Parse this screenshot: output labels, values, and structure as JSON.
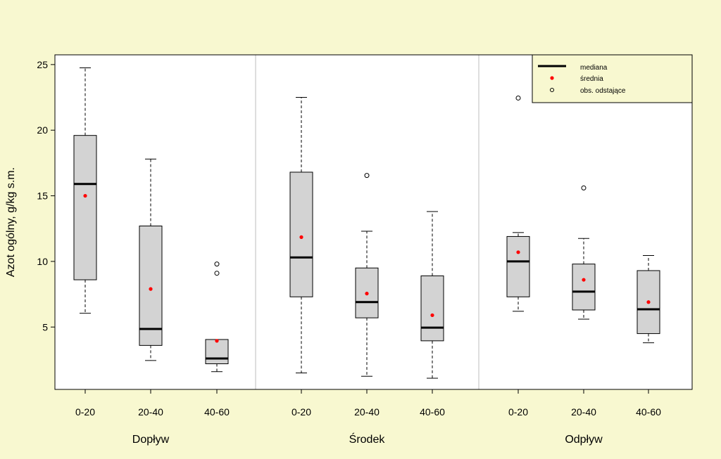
{
  "chart_data": {
    "type": "box",
    "ylabel": "Azot ogólny, g/kg s.m.",
    "ylim": [
      0,
      25.8
    ],
    "y_ticks": [
      5,
      10,
      15,
      20,
      25
    ],
    "groups": [
      {
        "name": "Dopływ",
        "boxes": [
          {
            "label": "0-20",
            "min": 6.05,
            "q1": 8.6,
            "median": 15.9,
            "q3": 19.6,
            "max": 24.75,
            "mean": 15.0,
            "outliers": []
          },
          {
            "label": "20-40",
            "min": 2.45,
            "q1": 3.6,
            "median": 4.85,
            "q3": 12.7,
            "max": 17.8,
            "mean": 7.9,
            "outliers": []
          },
          {
            "label": "40-60",
            "min": 1.6,
            "q1": 2.2,
            "median": 2.6,
            "q3": 4.05,
            "max": 4.05,
            "mean": 3.95,
            "outliers": [
              9.1,
              9.8
            ]
          }
        ]
      },
      {
        "name": "Środek",
        "boxes": [
          {
            "label": "0-20",
            "min": 1.5,
            "q1": 7.3,
            "median": 10.3,
            "q3": 16.8,
            "max": 22.5,
            "mean": 11.85,
            "outliers": []
          },
          {
            "label": "20-40",
            "min": 1.25,
            "q1": 5.7,
            "median": 6.9,
            "q3": 9.5,
            "max": 12.3,
            "mean": 7.55,
            "outliers": [
              16.55
            ]
          },
          {
            "label": "40-60",
            "min": 1.1,
            "q1": 3.95,
            "median": 4.95,
            "q3": 8.9,
            "max": 13.8,
            "mean": 5.9,
            "outliers": []
          }
        ]
      },
      {
        "name": "Odpływ",
        "boxes": [
          {
            "label": "0-20",
            "min": 6.2,
            "q1": 7.3,
            "median": 10.0,
            "q3": 11.9,
            "max": 12.2,
            "mean": 10.7,
            "outliers": [
              22.45
            ]
          },
          {
            "label": "20-40",
            "min": 5.6,
            "q1": 6.3,
            "median": 7.7,
            "q3": 9.8,
            "max": 11.75,
            "mean": 8.6,
            "outliers": [
              15.6
            ]
          },
          {
            "label": "40-60",
            "min": 3.8,
            "q1": 4.5,
            "median": 6.35,
            "q3": 9.3,
            "max": 10.45,
            "mean": 6.9,
            "outliers": []
          }
        ]
      }
    ],
    "legend": {
      "position": "top-right",
      "entries": [
        {
          "label": "mediana",
          "symbol": "thick-line"
        },
        {
          "label": "średnia",
          "symbol": "red-dot"
        },
        {
          "label": "obs. odstające",
          "symbol": "open-circle"
        }
      ]
    },
    "colors": {
      "background": "#f8f8d0",
      "plot_background": "#ffffff",
      "box_fill": "#d3d3d3",
      "mean": "#ff0000",
      "separator": "#bebebe",
      "legend_background": "#f8f8d0"
    }
  }
}
